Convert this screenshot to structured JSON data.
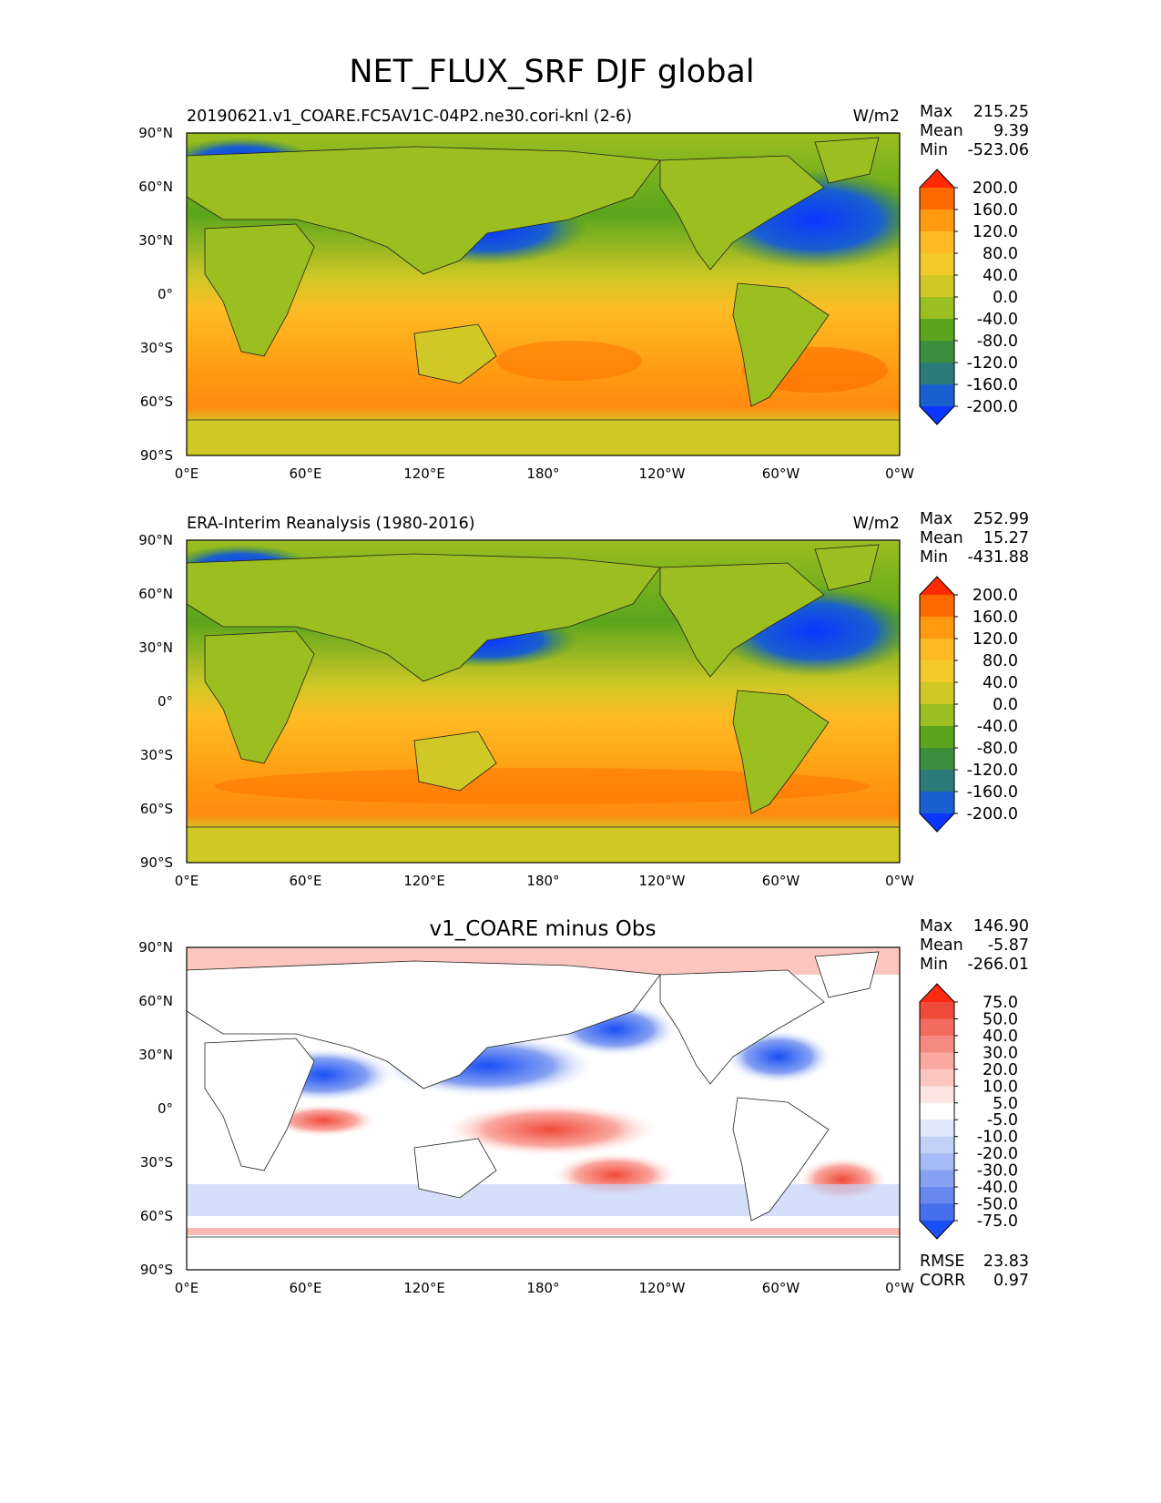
{
  "figure": {
    "title": "NET_FLUX_SRF DJF global"
  },
  "chart_data": [
    {
      "type": "heatmap",
      "panel": "test",
      "left_title": "20190621.v1_COARE.FC5AV1C-04P2.ne30.cori-knl (2-6)",
      "units": "W/m2",
      "stats": [
        {
          "label": "Max",
          "value": "215.25"
        },
        {
          "label": "Mean",
          "value": "9.39"
        },
        {
          "label": "Min",
          "value": "-523.06"
        }
      ],
      "x_ticks": [
        "0°E",
        "60°E",
        "120°E",
        "180°",
        "120°W",
        "60°W",
        "0°W"
      ],
      "y_ticks": [
        "90°N",
        "60°N",
        "30°N",
        "0°",
        "30°S",
        "60°S",
        "90°S"
      ],
      "xlim": [
        0,
        360
      ],
      "ylim": [
        -90,
        90
      ],
      "colorbar": {
        "levels": [
          "200.0",
          "160.0",
          "120.0",
          "80.0",
          "40.0",
          "0.0",
          "-40.0",
          "-80.0",
          "-120.0",
          "-160.0",
          "-200.0"
        ],
        "colors": [
          "#ff2a00",
          "#ff6a00",
          "#ff9a10",
          "#ffbb24",
          "#f2cb2a",
          "#cfc826",
          "#9bbe20",
          "#5aa51c",
          "#3d8e3c",
          "#2a7b7a",
          "#1a5fcf",
          "#0a36ff"
        ]
      }
    },
    {
      "type": "heatmap",
      "panel": "reference",
      "left_title": "ERA-Interim Reanalysis (1980-2016)",
      "units": "W/m2",
      "stats": [
        {
          "label": "Max",
          "value": "252.99"
        },
        {
          "label": "Mean",
          "value": "15.27"
        },
        {
          "label": "Min",
          "value": "-431.88"
        }
      ],
      "x_ticks": [
        "0°E",
        "60°E",
        "120°E",
        "180°",
        "120°W",
        "60°W",
        "0°W"
      ],
      "y_ticks": [
        "90°N",
        "60°N",
        "30°N",
        "0°",
        "30°S",
        "60°S",
        "90°S"
      ],
      "xlim": [
        0,
        360
      ],
      "ylim": [
        -90,
        90
      ],
      "colorbar": {
        "levels": [
          "200.0",
          "160.0",
          "120.0",
          "80.0",
          "40.0",
          "0.0",
          "-40.0",
          "-80.0",
          "-120.0",
          "-160.0",
          "-200.0"
        ],
        "colors": [
          "#ff2a00",
          "#ff6a00",
          "#ff9a10",
          "#ffbb24",
          "#f2cb2a",
          "#cfc826",
          "#9bbe20",
          "#5aa51c",
          "#3d8e3c",
          "#2a7b7a",
          "#1a5fcf",
          "#0a36ff"
        ]
      }
    },
    {
      "type": "heatmap",
      "panel": "difference",
      "title": "v1_COARE minus Obs",
      "stats": [
        {
          "label": "Max",
          "value": "146.90"
        },
        {
          "label": "Mean",
          "value": "-5.87"
        },
        {
          "label": "Min",
          "value": "-266.01"
        }
      ],
      "metrics": [
        {
          "label": "RMSE",
          "value": "23.83"
        },
        {
          "label": "CORR",
          "value": "0.97"
        }
      ],
      "x_ticks": [
        "0°E",
        "60°E",
        "120°E",
        "180°",
        "120°W",
        "60°W",
        "0°W"
      ],
      "y_ticks": [
        "90°N",
        "60°N",
        "30°N",
        "0°",
        "30°S",
        "60°S",
        "90°S"
      ],
      "xlim": [
        0,
        360
      ],
      "ylim": [
        -90,
        90
      ],
      "colorbar": {
        "levels": [
          "75.0",
          "50.0",
          "40.0",
          "30.0",
          "20.0",
          "10.0",
          "5.0",
          "-5.0",
          "-10.0",
          "-20.0",
          "-30.0",
          "-40.0",
          "-50.0",
          "-75.0"
        ],
        "colors": [
          "#ff2a10",
          "#f04a3a",
          "#f36a5e",
          "#f78a80",
          "#faa8a0",
          "#fcc6be",
          "#fde4e0",
          "#ffffff",
          "#e2e8fb",
          "#c5d2f8",
          "#a6baf5",
          "#86a1f2",
          "#6688ef",
          "#4770ee",
          "#1a4ff5"
        ]
      }
    }
  ]
}
